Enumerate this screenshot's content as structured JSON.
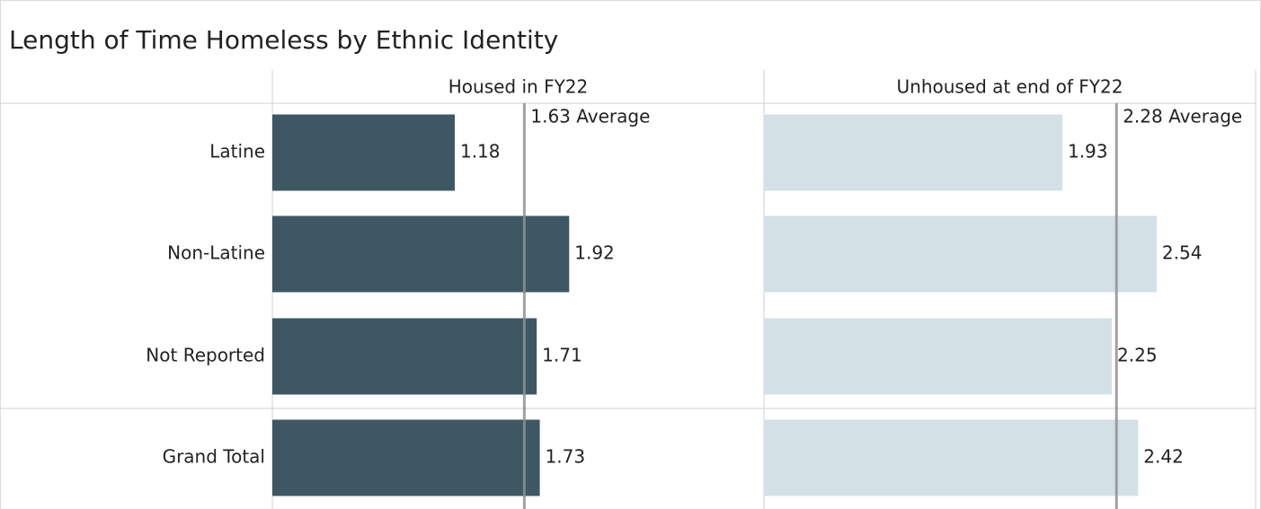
{
  "chart_data": {
    "type": "bar",
    "title": "Length of Time Homeless by Ethnic Identity",
    "categories": [
      "Latine",
      "Non-Latine",
      "Not Reported",
      "Grand Total"
    ],
    "xlim": [
      0,
      3.18
    ],
    "series": [
      {
        "name": "Housed in FY22",
        "color": "#3d5864",
        "values": [
          1.18,
          1.92,
          1.71,
          1.73
        ],
        "reference_line": {
          "value": 1.63,
          "label": "1.63 Average"
        }
      },
      {
        "name": "Unhoused at end of FY22",
        "color": "#d3e0e6",
        "values": [
          1.93,
          2.54,
          2.25,
          2.42
        ],
        "reference_line": {
          "value": 2.28,
          "label": "2.28 Average"
        }
      }
    ]
  }
}
